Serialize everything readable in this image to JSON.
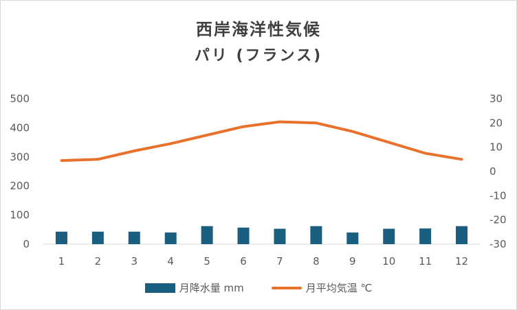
{
  "chart_data": {
    "type": "bar",
    "title": "西岸海洋性気候",
    "subtitle": "パリ (フランス)",
    "categories": [
      "1",
      "2",
      "3",
      "4",
      "5",
      "6",
      "7",
      "8",
      "9",
      "10",
      "11",
      "12"
    ],
    "series": [
      {
        "name": "月降水量 mm",
        "type": "bar",
        "axis": "left",
        "color": "#1a5e80",
        "values": [
          43,
          43,
          43,
          40,
          62,
          57,
          53,
          62,
          40,
          53,
          54,
          62
        ]
      },
      {
        "name": "月平均気温 ℃",
        "type": "line",
        "axis": "right",
        "color": "#e8722d",
        "values": [
          4.5,
          5,
          8.5,
          11.5,
          15,
          18.5,
          20.5,
          20,
          16.5,
          12,
          7.5,
          5
        ]
      }
    ],
    "y_left": {
      "range": [
        0,
        500
      ],
      "ticks": [
        "500",
        "400",
        "300",
        "200",
        "100",
        "0"
      ]
    },
    "y_right": {
      "range": [
        -30,
        30
      ],
      "ticks": [
        "30",
        "20",
        "10",
        "0",
        "-10",
        "-20",
        "-30"
      ]
    },
    "grid": false,
    "legend_position": "bottom"
  }
}
